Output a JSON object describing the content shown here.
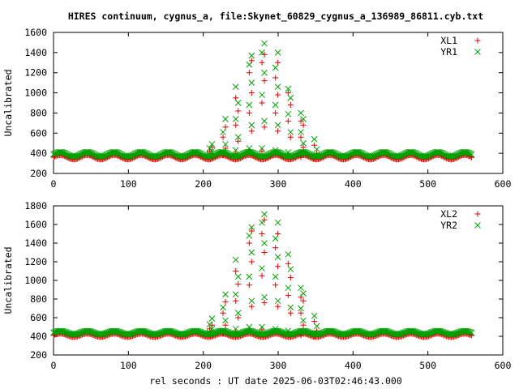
{
  "figure": {
    "title": "HIRES continuum, cygnus_a, file:Skynet_60829_cygnus_a_136989_86811.cyb.txt",
    "xlabel": "rel seconds : UT date 2025-06-03T02:46:43.000"
  },
  "chart_data": [
    {
      "type": "scatter",
      "ylabel": "Uncalibrated",
      "xlim": [
        0,
        600
      ],
      "ylim": [
        200,
        1600
      ],
      "xticks": [
        0,
        100,
        200,
        300,
        400,
        500,
        600
      ],
      "yticks": [
        200,
        400,
        600,
        800,
        1000,
        1200,
        1400,
        1600
      ],
      "legend_position": "top-right",
      "baseline": {
        "x_range": [
          0,
          560
        ],
        "series_a_mean": 360,
        "series_a_amplitude": 22,
        "series_b_mean": 390,
        "series_b_amplitude": 22,
        "period": 36
      },
      "series": [
        {
          "name": "XL1",
          "marker": "+",
          "color": "#e00000",
          "peak_scans": [
            {
              "x": 210,
              "values": [
                360,
                390,
                420,
                460
              ]
            },
            {
              "x": 228,
              "values": [
                380,
                450,
                560,
                660
              ]
            },
            {
              "x": 245,
              "values": [
                400,
                520,
                680,
                820,
                950
              ]
            },
            {
              "x": 263,
              "values": [
                420,
                620,
                800,
                1000,
                1200,
                1320
              ]
            },
            {
              "x": 280,
              "values": [
                420,
                660,
                900,
                1120,
                1300,
                1380
              ]
            },
            {
              "x": 298,
              "values": [
                400,
                620,
                800,
                980,
                1150,
                1300
              ]
            },
            {
              "x": 315,
              "values": [
                380,
                560,
                720,
                880,
                1000
              ]
            },
            {
              "x": 332,
              "values": [
                360,
                460,
                560,
                680,
                720
              ]
            },
            {
              "x": 350,
              "values": [
                350,
                400,
                480
              ]
            }
          ]
        },
        {
          "name": "YR1",
          "marker": "x",
          "color": "#00a000",
          "peak_scans": [
            {
              "x": 210,
              "values": [
                390,
                420,
                450,
                490
              ]
            },
            {
              "x": 228,
              "values": [
                410,
                490,
                610,
                740
              ]
            },
            {
              "x": 245,
              "values": [
                430,
                560,
                740,
                900,
                1060
              ]
            },
            {
              "x": 263,
              "values": [
                450,
                680,
                880,
                1100,
                1280,
                1370
              ]
            },
            {
              "x": 280,
              "values": [
                450,
                720,
                980,
                1200,
                1400,
                1490
              ]
            },
            {
              "x": 298,
              "values": [
                430,
                680,
                880,
                1060,
                1250,
                1400
              ]
            },
            {
              "x": 315,
              "values": [
                410,
                610,
                790,
                950,
                1040
              ]
            },
            {
              "x": 332,
              "values": [
                390,
                500,
                610,
                740,
                800
              ]
            },
            {
              "x": 350,
              "values": [
                380,
                440,
                540
              ]
            }
          ]
        }
      ]
    },
    {
      "type": "scatter",
      "ylabel": "Uncalibrated",
      "xlim": [
        0,
        600
      ],
      "ylim": [
        200,
        1800
      ],
      "xticks": [
        0,
        100,
        200,
        300,
        400,
        500,
        600
      ],
      "yticks": [
        200,
        400,
        600,
        800,
        1000,
        1200,
        1400,
        1600,
        1800
      ],
      "legend_position": "top-right",
      "baseline": {
        "x_range": [
          0,
          560
        ],
        "series_a_mean": 410,
        "series_a_amplitude": 18,
        "series_b_mean": 440,
        "series_b_amplitude": 18,
        "period": 36
      },
      "series": [
        {
          "name": "XL2",
          "marker": "+",
          "color": "#e00000",
          "peak_scans": [
            {
              "x": 210,
              "values": [
                410,
                440,
                480,
                520
              ]
            },
            {
              "x": 228,
              "values": [
                430,
                520,
                650,
                770
              ]
            },
            {
              "x": 245,
              "values": [
                450,
                600,
                780,
                960,
                1100
              ]
            },
            {
              "x": 263,
              "values": [
                470,
                720,
                950,
                1200,
                1400,
                1530
              ]
            },
            {
              "x": 280,
              "values": [
                470,
                760,
                1050,
                1300,
                1500,
                1650
              ]
            },
            {
              "x": 298,
              "values": [
                450,
                720,
                950,
                1150,
                1350,
                1500
              ]
            },
            {
              "x": 315,
              "values": [
                430,
                650,
                840,
                1030,
                1180
              ]
            },
            {
              "x": 332,
              "values": [
                410,
                520,
                650,
                780,
                820
              ]
            },
            {
              "x": 350,
              "values": [
                400,
                460,
                560
              ]
            }
          ]
        },
        {
          "name": "YR2",
          "marker": "x",
          "color": "#00a000",
          "peak_scans": [
            {
              "x": 210,
              "values": [
                440,
                480,
                530,
                590
              ]
            },
            {
              "x": 228,
              "values": [
                460,
                570,
                710,
                850
              ]
            },
            {
              "x": 245,
              "values": [
                480,
                650,
                850,
                1040,
                1220
              ]
            },
            {
              "x": 263,
              "values": [
                500,
                780,
                1040,
                1300,
                1480,
                1570
              ]
            },
            {
              "x": 280,
              "values": [
                500,
                820,
                1130,
                1400,
                1620,
                1710
              ]
            },
            {
              "x": 298,
              "values": [
                480,
                780,
                1040,
                1250,
                1450,
                1620
              ]
            },
            {
              "x": 315,
              "values": [
                460,
                710,
                920,
                1120,
                1280
              ]
            },
            {
              "x": 332,
              "values": [
                440,
                570,
                700,
                860,
                920
              ]
            },
            {
              "x": 350,
              "values": [
                430,
                510,
                620
              ]
            }
          ]
        }
      ]
    }
  ]
}
